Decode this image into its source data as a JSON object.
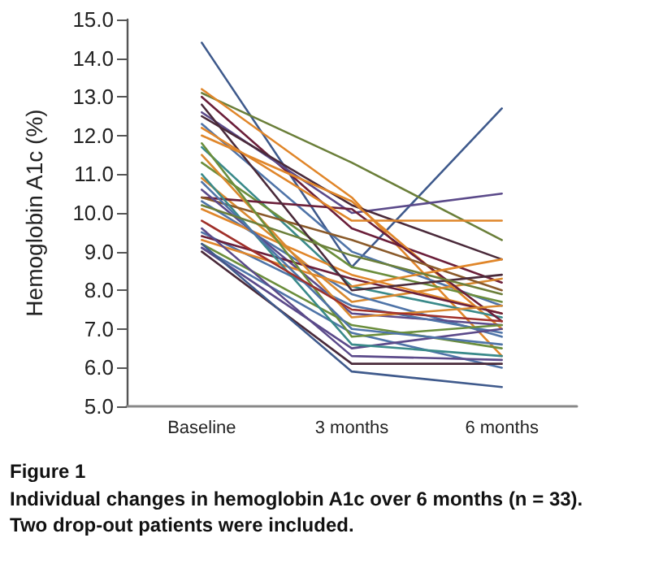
{
  "chart_data": {
    "type": "line",
    "ylabel": "Hemoglobin A1c (%)",
    "categories": [
      "Baseline",
      "3 months",
      "6 months"
    ],
    "ylim": [
      5,
      15
    ],
    "yticks": [
      {
        "value": 5,
        "label": "5.0"
      },
      {
        "value": 6,
        "label": "6.0"
      },
      {
        "value": 7,
        "label": "7.0"
      },
      {
        "value": 8,
        "label": "8.0"
      },
      {
        "value": 9,
        "label": "9.0"
      },
      {
        "value": 10,
        "label": "10.0"
      },
      {
        "value": 11,
        "label": "11.0"
      },
      {
        "value": 12,
        "label": "12.0"
      },
      {
        "value": 13,
        "label": "13.0"
      },
      {
        "value": 14,
        "label": "14.0"
      },
      {
        "value": 15,
        "label": "15.0"
      }
    ],
    "grid": false,
    "marker": "none",
    "line_style": "solid",
    "annotations": [
      "Figure 1",
      "Individual changes in hemoglobin A1c over 6 months (n = 33). Two drop-out patients were included."
    ],
    "series": [
      {
        "color": "#3f5a8c",
        "values": [
          14.4,
          8.6,
          12.7
        ]
      },
      {
        "color": "#6b7f3a",
        "values": [
          13.1,
          11.3,
          9.3
        ]
      },
      {
        "color": "#e0862a",
        "values": [
          13.2,
          10.4,
          6.3
        ]
      },
      {
        "color": "#6b1f3a",
        "values": [
          13.0,
          9.6,
          8.2
        ]
      },
      {
        "color": "#5b4a8a",
        "values": [
          12.6,
          10.0,
          10.5
        ]
      },
      {
        "color": "#4a2a3a",
        "values": [
          12.5,
          10.2,
          8.8
        ]
      },
      {
        "color": "#4f74a8",
        "values": [
          12.3,
          9.0,
          7.6
        ]
      },
      {
        "color": "#e0862a",
        "values": [
          12.0,
          10.3,
          7.0
        ]
      },
      {
        "color": "#3a8a8a",
        "values": [
          11.7,
          8.1,
          7.3
        ]
      },
      {
        "color": "#6b8e3c",
        "values": [
          11.3,
          8.6,
          7.7
        ]
      },
      {
        "color": "#d9892f",
        "values": [
          10.9,
          7.7,
          8.3
        ]
      },
      {
        "color": "#6b1f3a",
        "values": [
          10.4,
          10.1,
          7.2
        ]
      },
      {
        "color": "#8a5a2a",
        "values": [
          10.4,
          9.3,
          8.0
        ]
      },
      {
        "color": "#4f74a8",
        "values": [
          10.3,
          7.9,
          6.8
        ]
      },
      {
        "color": "#e0862a",
        "values": [
          10.1,
          8.4,
          7.4
        ]
      },
      {
        "color": "#5b4a8a",
        "values": [
          10.6,
          7.4,
          7.1
        ]
      },
      {
        "color": "#4f74a8",
        "values": [
          9.5,
          7.6,
          6.9
        ]
      },
      {
        "color": "#6b1f3a",
        "values": [
          9.4,
          8.3,
          7.4
        ]
      },
      {
        "color": "#e0862a",
        "values": [
          9.3,
          8.1,
          8.8
        ]
      },
      {
        "color": "#6b8e3c",
        "values": [
          9.2,
          7.1,
          6.5
        ]
      },
      {
        "color": "#4f74a8",
        "values": [
          9.1,
          6.9,
          6.0
        ]
      },
      {
        "color": "#5b4a8a",
        "values": [
          9.1,
          6.5,
          7.0
        ]
      },
      {
        "color": "#4a2a3a",
        "values": [
          9.0,
          6.1,
          6.1
        ]
      },
      {
        "color": "#3f5a8c",
        "values": [
          9.2,
          5.9,
          5.5
        ]
      },
      {
        "color": "#3a8a8a",
        "values": [
          11.0,
          6.6,
          6.3
        ]
      },
      {
        "color": "#d9892f",
        "values": [
          11.5,
          7.3,
          7.6
        ]
      },
      {
        "color": "#4a2a3a",
        "values": [
          12.8,
          8.0,
          8.4
        ]
      },
      {
        "color": "#6b8e3c",
        "values": [
          11.8,
          6.8,
          7.1
        ]
      },
      {
        "color": "#4f74a8",
        "values": [
          10.8,
          7.0,
          6.6
        ]
      },
      {
        "color": "#5b4a8a",
        "values": [
          9.6,
          6.3,
          6.2
        ]
      },
      {
        "color": "#e0862a",
        "values": [
          12.2,
          9.8,
          9.8
        ]
      },
      {
        "color": "#6b7f3a",
        "values": [
          10.2,
          8.9,
          7.9
        ]
      },
      {
        "color": "#a0302a",
        "values": [
          9.8,
          7.5,
          7.2
        ]
      }
    ]
  }
}
